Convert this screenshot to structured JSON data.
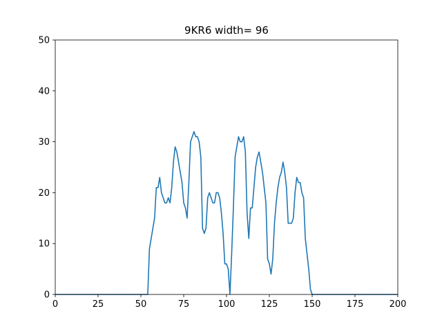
{
  "chart_data": {
    "type": "line",
    "title": "9KR6 width= 96",
    "xlabel": "",
    "ylabel": "",
    "xlim": [
      0,
      200
    ],
    "ylim": [
      0,
      50
    ],
    "xticks": [
      0,
      25,
      50,
      75,
      100,
      125,
      150,
      175,
      200
    ],
    "yticks": [
      0,
      10,
      20,
      30,
      40,
      50
    ],
    "grid": false,
    "series_color": "#1f77b4",
    "series": [
      {
        "x": [
          0,
          54,
          55,
          56,
          57,
          58,
          59,
          60,
          61,
          62,
          63,
          64,
          65,
          66,
          67,
          68,
          69,
          70,
          71,
          72,
          73,
          74,
          75,
          76,
          77,
          78,
          79,
          80,
          81,
          82,
          83,
          84,
          85,
          86,
          87,
          88,
          89,
          90,
          91,
          92,
          93,
          94,
          95,
          96,
          97,
          98,
          99,
          100,
          101,
          102,
          103,
          104,
          105,
          106,
          107,
          108,
          109,
          110,
          111,
          112,
          113,
          114,
          115,
          116,
          117,
          118,
          119,
          120,
          121,
          122,
          123,
          124,
          125,
          126,
          127,
          128,
          129,
          130,
          131,
          132,
          133,
          134,
          135,
          136,
          137,
          138,
          139,
          140,
          141,
          142,
          143,
          144,
          145,
          146,
          147,
          148,
          149,
          150,
          200
        ],
        "y": [
          0,
          0,
          9,
          11,
          13,
          15,
          21,
          21,
          23,
          20,
          19,
          18,
          18,
          19,
          18,
          21,
          26,
          29,
          28,
          26,
          24,
          22,
          18,
          17,
          15,
          22,
          30,
          31,
          32,
          31,
          31,
          30,
          27,
          13,
          12,
          13,
          19,
          20,
          19,
          18,
          18,
          20,
          20,
          19,
          16,
          12,
          6,
          6,
          5,
          0,
          8,
          17,
          27,
          29,
          31,
          30,
          30,
          31,
          28,
          16,
          11,
          17,
          17,
          21,
          25,
          27,
          28,
          26,
          24,
          21,
          18,
          7,
          6,
          4,
          7,
          14,
          18,
          21,
          23,
          24,
          26,
          24,
          21,
          14,
          14,
          14,
          15,
          20,
          23,
          22,
          22,
          20,
          19,
          11,
          8,
          5,
          1,
          0,
          0
        ]
      }
    ]
  }
}
